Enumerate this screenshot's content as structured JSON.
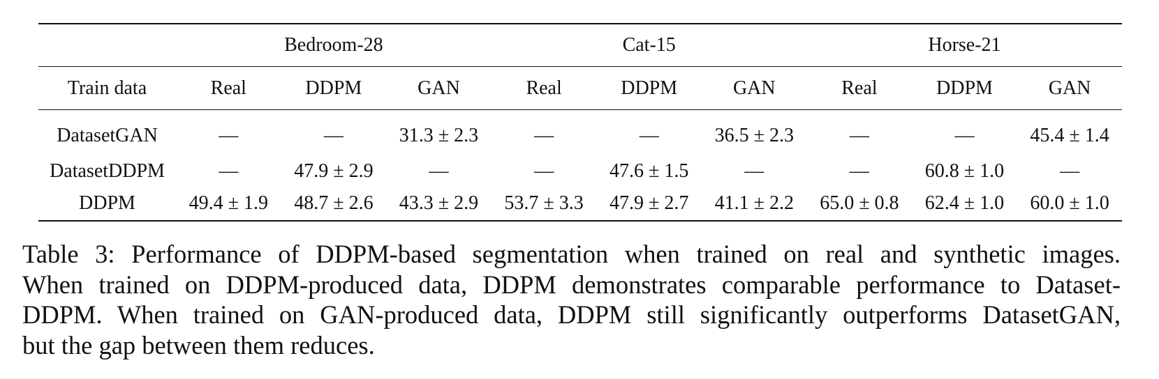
{
  "table": {
    "group_header": [
      "Bedroom-28",
      "Cat-15",
      "Horse-21"
    ],
    "header": [
      "Train data",
      "Real",
      "DDPM",
      "GAN",
      "Real",
      "DDPM",
      "GAN",
      "Real",
      "DDPM",
      "GAN"
    ],
    "rows": [
      [
        "DatasetGAN",
        "—",
        "—",
        "31.3 ± 2.3",
        "—",
        "—",
        "36.5 ± 2.3",
        "—",
        "—",
        "45.4 ± 1.4"
      ],
      [
        "DatasetDDPM",
        "—",
        "47.9 ± 2.9",
        "—",
        "—",
        "47.6 ± 1.5",
        "—",
        "—",
        "60.8 ± 1.0",
        "—"
      ],
      [
        "DDPM",
        "49.4 ± 1.9",
        "48.7 ± 2.6",
        "43.3 ± 2.9",
        "53.7 ± 3.3",
        "47.9 ± 2.7",
        "41.1 ± 2.2",
        "65.0 ± 0.8",
        "62.4 ± 1.0",
        "60.0 ± 1.0"
      ]
    ]
  },
  "caption": [
    "Table 3: Performance of DDPM-based segmentation when trained on real and synthetic images.",
    "When trained on DDPM-produced data, DDPM demonstrates comparable performance to Dataset-",
    "DDPM. When trained on GAN-produced data, DDPM still significantly outperforms DatasetGAN,",
    "but the gap between them reduces."
  ]
}
